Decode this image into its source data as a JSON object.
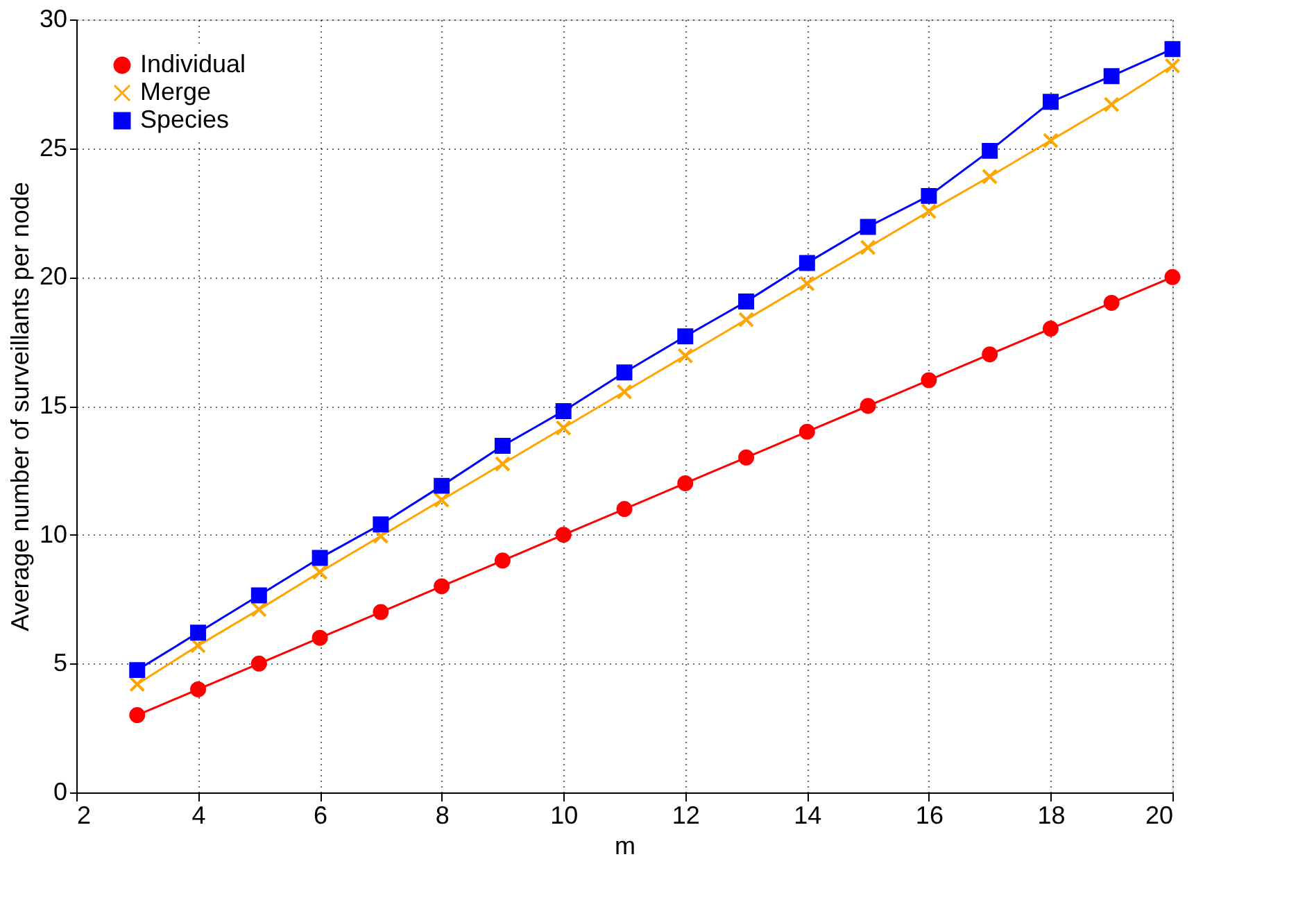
{
  "chart_data": {
    "type": "line",
    "xlabel": "m",
    "ylabel": "Average number of surveillants per node",
    "x": [
      3,
      4,
      5,
      6,
      7,
      8,
      9,
      10,
      11,
      12,
      13,
      14,
      15,
      16,
      17,
      18,
      19,
      20
    ],
    "series": [
      {
        "name": "Individual",
        "color": "#ff0000",
        "marker": "circle",
        "values": [
          3,
          4,
          5,
          6,
          7,
          8,
          9,
          10,
          11,
          12,
          13,
          14,
          15,
          16,
          17,
          18,
          19,
          20
        ]
      },
      {
        "name": "Merge",
        "color": "#ffa500",
        "marker": "cross",
        "values": [
          4.2,
          5.7,
          7.1,
          8.55,
          9.95,
          11.35,
          12.75,
          14.15,
          15.55,
          16.95,
          18.35,
          19.75,
          21.15,
          22.55,
          23.9,
          25.3,
          26.7,
          28.2
        ]
      },
      {
        "name": "Species",
        "color": "#0000ff",
        "marker": "square",
        "values": [
          4.75,
          6.2,
          7.65,
          9.1,
          10.4,
          11.9,
          13.45,
          14.8,
          16.3,
          17.7,
          19.05,
          20.55,
          21.95,
          23.15,
          24.9,
          26.8,
          27.8,
          28.85
        ]
      }
    ],
    "xlim": [
      2,
      20
    ],
    "ylim": [
      0,
      30
    ],
    "xticks": [
      2,
      4,
      6,
      8,
      10,
      12,
      14,
      16,
      18,
      20
    ],
    "yticks": [
      0,
      5,
      10,
      15,
      20,
      25,
      30
    ],
    "grid": true,
    "legend": "top left",
    "line_style": "solid"
  }
}
